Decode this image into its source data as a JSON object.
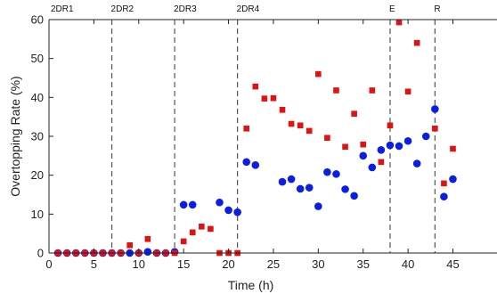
{
  "chart_data": {
    "type": "scatter",
    "xlabel": "Time (h)",
    "ylabel": "Overtopping Rate (%)",
    "xlim": [
      0,
      45
    ],
    "ylim": [
      0,
      60
    ],
    "xticks": [
      0,
      5,
      10,
      15,
      20,
      25,
      30,
      35,
      40,
      45
    ],
    "yticks": [
      0,
      10,
      20,
      30,
      40,
      50,
      60
    ],
    "xtick_labels": [
      "0",
      "5",
      "10",
      "15",
      "20",
      "25",
      "30",
      "35",
      "40",
      "45"
    ],
    "ytick_labels": [
      "0",
      "10",
      "20",
      "30",
      "40",
      "50",
      "60"
    ],
    "grid": false,
    "vertical_markers": [
      {
        "x": 0,
        "label": "2DR1",
        "line": false
      },
      {
        "x": 7,
        "label": "2DR2",
        "line": true
      },
      {
        "x": 14,
        "label": "2DR3",
        "line": true
      },
      {
        "x": 21,
        "label": "2DR4",
        "line": true
      },
      {
        "x": 38,
        "label": "E",
        "line": true
      },
      {
        "x": 43,
        "label": "R",
        "line": true
      }
    ],
    "series": [
      {
        "marker": "circle",
        "color": "#0a1ee6",
        "points": [
          [
            1,
            0
          ],
          [
            2,
            0
          ],
          [
            3,
            0
          ],
          [
            4,
            0
          ],
          [
            5,
            0
          ],
          [
            6,
            0
          ],
          [
            7,
            0
          ],
          [
            8,
            0
          ],
          [
            9,
            0
          ],
          [
            10,
            0
          ],
          [
            11,
            0.3
          ],
          [
            12,
            0
          ],
          [
            13,
            0
          ],
          [
            14,
            0.3
          ],
          [
            15,
            12.4
          ],
          [
            16,
            12.4
          ],
          [
            19,
            13
          ],
          [
            20,
            11
          ],
          [
            21,
            10.5
          ],
          [
            22,
            23.4
          ],
          [
            23,
            22.6
          ],
          [
            26,
            18.3
          ],
          [
            27,
            19
          ],
          [
            28,
            16.5
          ],
          [
            29,
            16.8
          ],
          [
            30,
            12
          ],
          [
            31,
            20.8
          ],
          [
            32,
            20.3
          ],
          [
            33,
            16.4
          ],
          [
            34,
            14.7
          ],
          [
            35,
            25
          ],
          [
            36,
            22
          ],
          [
            37,
            26.5
          ],
          [
            38,
            27.7
          ],
          [
            39,
            27.5
          ],
          [
            40,
            28.8
          ],
          [
            41,
            23
          ],
          [
            42,
            30
          ],
          [
            43,
            37
          ],
          [
            44,
            14.5
          ],
          [
            45,
            19
          ]
        ]
      },
      {
        "marker": "square",
        "color": "#e01212",
        "points": [
          [
            1,
            0
          ],
          [
            2,
            0
          ],
          [
            3,
            0
          ],
          [
            4,
            0
          ],
          [
            5,
            0
          ],
          [
            6,
            0
          ],
          [
            7,
            0
          ],
          [
            8,
            0
          ],
          [
            9,
            2
          ],
          [
            10,
            0
          ],
          [
            11,
            3.6
          ],
          [
            12,
            0
          ],
          [
            13,
            0
          ],
          [
            14,
            0
          ],
          [
            15,
            3
          ],
          [
            16,
            5.3
          ],
          [
            17,
            6.8
          ],
          [
            18,
            6.2
          ],
          [
            19,
            0
          ],
          [
            20,
            0
          ],
          [
            21,
            0
          ],
          [
            22,
            32
          ],
          [
            23,
            42.8
          ],
          [
            24,
            39.7
          ],
          [
            25,
            39.8
          ],
          [
            26,
            36.8
          ],
          [
            27,
            33.2
          ],
          [
            28,
            32.8
          ],
          [
            29,
            31.4
          ],
          [
            30,
            46
          ],
          [
            31,
            29.6
          ],
          [
            32,
            41.8
          ],
          [
            33,
            27.3
          ],
          [
            34,
            35.8
          ],
          [
            35,
            27.9
          ],
          [
            36,
            41.8
          ],
          [
            37,
            23.4
          ],
          [
            38,
            32.8
          ],
          [
            39,
            59.3
          ],
          [
            40,
            41.5
          ],
          [
            41,
            54
          ],
          [
            43,
            32
          ],
          [
            44,
            17.9
          ],
          [
            45,
            26.8
          ]
        ]
      }
    ]
  }
}
